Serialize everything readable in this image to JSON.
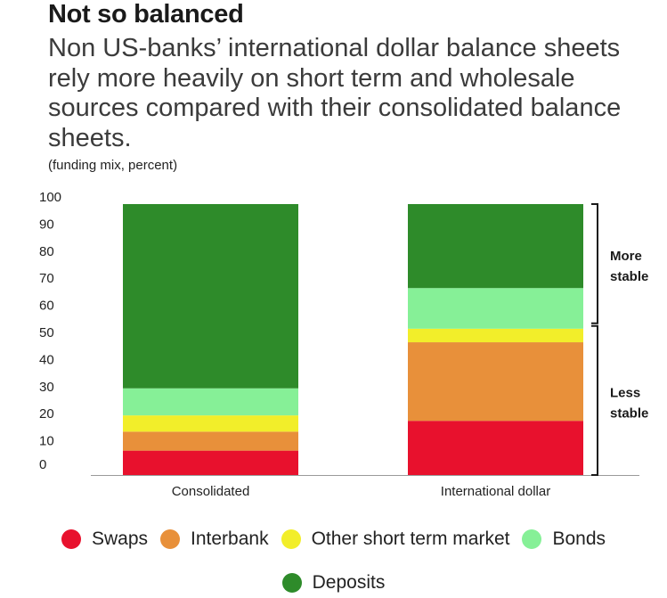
{
  "title": "Not so balanced",
  "subtitle": "Non US-banks’ international dollar balance sheets rely more heavily on short term and wholesale sources compared with their consolidated balance sheets.",
  "note": "(funding mix, percent)",
  "colors": {
    "swaps": "#e8112d",
    "interbank": "#e8903a",
    "other": "#f2ee2a",
    "bonds": "#86f097",
    "deposits": "#2e8b2a",
    "axis": "#9a9a9a",
    "bracket": "#1a1a1a"
  },
  "chart_data": {
    "type": "bar",
    "stacked": true,
    "title": "Not so balanced",
    "xlabel": "",
    "ylabel": "",
    "ylim": [
      0,
      100
    ],
    "yticks": [
      0,
      10,
      20,
      30,
      40,
      50,
      60,
      70,
      80,
      90,
      100
    ],
    "categories": [
      "Consolidated",
      "International dollar"
    ],
    "series": [
      {
        "name": "Swaps",
        "key": "swaps",
        "values": [
          9,
          20
        ]
      },
      {
        "name": "Interbank",
        "key": "interbank",
        "values": [
          7,
          29
        ]
      },
      {
        "name": "Other short term market",
        "key": "other",
        "values": [
          6,
          5
        ]
      },
      {
        "name": "Bonds",
        "key": "bonds",
        "values": [
          10,
          15
        ]
      },
      {
        "name": "Deposits",
        "key": "deposits",
        "values": [
          68,
          31
        ]
      }
    ],
    "annotations": [
      {
        "text": [
          "More",
          "stable"
        ],
        "from": 56,
        "to": 100
      },
      {
        "text": [
          "Less",
          "stable"
        ],
        "from": 0,
        "to": 55
      }
    ]
  }
}
